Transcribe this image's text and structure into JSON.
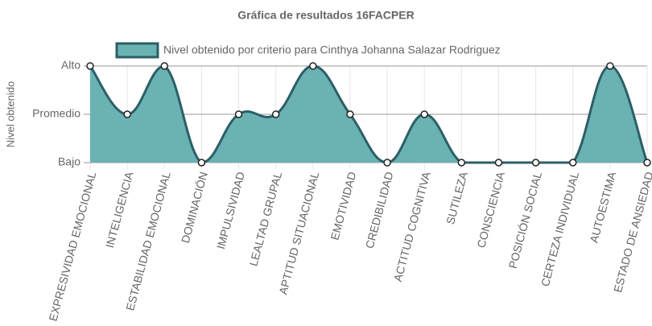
{
  "chart_data": {
    "type": "line",
    "title": "Gráfica de resultados 16FACPER",
    "y_label": "Nivel obtenido",
    "categories": [
      "EXPRESIVIDAD EMOCIONAL",
      "INTELIGENCIA",
      "ESTABILIDAD EMOCIONAL",
      "DOMINACIÓN",
      "IMPULSIVIDAD",
      "LEALTAD GRUPAL",
      "APTITUD SITUACIONAL",
      "EMOTIVIDAD",
      "CREDIBILIDAD",
      "ACTITUD COGNITIVA",
      "SUTILEZA",
      "CONSCIENCIA",
      "POSICIÓN SOCIAL",
      "CERTEZA INDIVIDUAL",
      "AUTOESTIMA",
      "ESTADO DE ANSIEDAD"
    ],
    "series": [
      {
        "name": "Nivel obtenido por criterio para Cinthya Johanna Salazar Rodriguez",
        "color": "#2c5f66",
        "fill": "#6ab2b3",
        "values": [
          3,
          2,
          3,
          1,
          2,
          2,
          3,
          2,
          1,
          2,
          1,
          1,
          1,
          1,
          3,
          1
        ]
      }
    ],
    "ylim": [
      1,
      3
    ],
    "yticks": [
      {
        "value": 1,
        "label": "Bajo"
      },
      {
        "value": 2,
        "label": "Promedio"
      },
      {
        "value": 3,
        "label": "Alto"
      }
    ],
    "grid": true
  }
}
